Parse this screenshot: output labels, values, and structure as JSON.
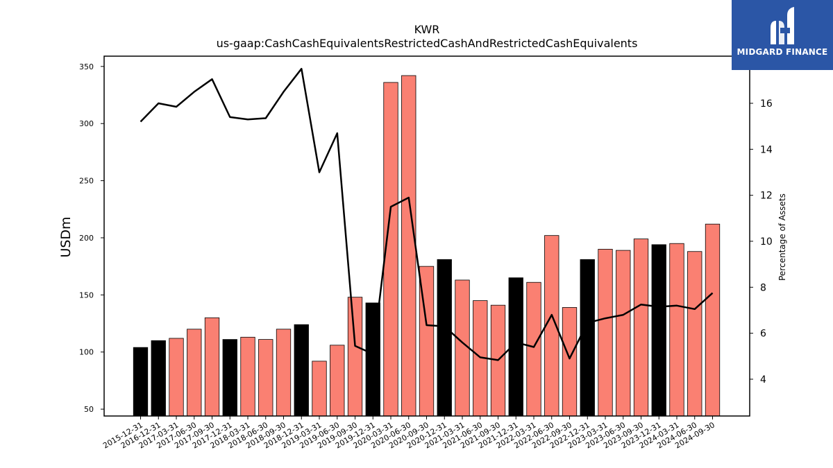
{
  "chart_data": {
    "type": "bar",
    "title": "KWR",
    "subtitle": "us-gaap:CashCashEquivalentsRestrictedCashAndRestrictedCashEquivalents",
    "ylabel": "USDm",
    "y2label": "Percentage of Assets",
    "ylim": [
      44,
      359
    ],
    "y2lim": [
      2.4,
      18.05
    ],
    "yticks": [
      50,
      100,
      150,
      200,
      250,
      300,
      350
    ],
    "y2ticks": [
      4,
      6,
      8,
      10,
      12,
      14,
      16
    ],
    "categories": [
      "2015-12-31",
      "2016-12-31",
      "2017-03-31",
      "2017-06-30",
      "2017-09-30",
      "2017-12-31",
      "2018-03-31",
      "2018-06-30",
      "2018-09-30",
      "2018-12-31",
      "2019-03-31",
      "2019-06-30",
      "2019-09-30",
      "2019-12-31",
      "2020-03-31",
      "2020-06-30",
      "2020-09-30",
      "2020-12-31",
      "2021-03-31",
      "2021-06-30",
      "2021-09-30",
      "2021-12-31",
      "2022-03-31",
      "2022-06-30",
      "2022-09-30",
      "2022-12-31",
      "2023-03-31",
      "2023-06-30",
      "2023-09-30",
      "2023-12-31",
      "2024-03-31",
      "2024-06-30",
      "2024-09-30"
    ],
    "series": [
      {
        "type": "bar",
        "values": [
          104,
          110,
          112,
          120,
          130,
          111,
          113,
          111,
          120,
          124,
          92,
          106,
          148,
          143,
          336,
          342,
          175,
          181,
          163,
          145,
          141,
          165,
          161,
          202,
          139,
          181,
          190,
          189,
          199,
          194,
          195,
          188,
          212
        ],
        "annual": [
          true,
          true,
          false,
          false,
          false,
          true,
          false,
          false,
          false,
          true,
          false,
          false,
          false,
          true,
          false,
          false,
          false,
          true,
          false,
          false,
          false,
          true,
          false,
          false,
          false,
          true,
          false,
          false,
          false,
          true,
          false,
          false,
          false
        ]
      },
      {
        "type": "line",
        "axis": "right",
        "values": [
          15.2,
          16.0,
          15.85,
          16.5,
          17.05,
          15.4,
          15.3,
          15.35,
          16.5,
          17.5,
          13.0,
          14.7,
          5.45,
          5.1,
          11.5,
          11.9,
          6.35,
          6.3,
          5.6,
          4.95,
          4.83,
          5.6,
          5.4,
          6.8,
          4.9,
          6.45,
          6.65,
          6.8,
          7.25,
          7.15,
          7.2,
          7.05,
          7.75
        ]
      }
    ],
    "colors": {
      "annual_bar": "#000000",
      "quarterly_bar": "#fa8072",
      "line": "#000000"
    }
  },
  "logo": {
    "text": "MIDGARD FINANCE",
    "bg": "#2b56a6"
  }
}
